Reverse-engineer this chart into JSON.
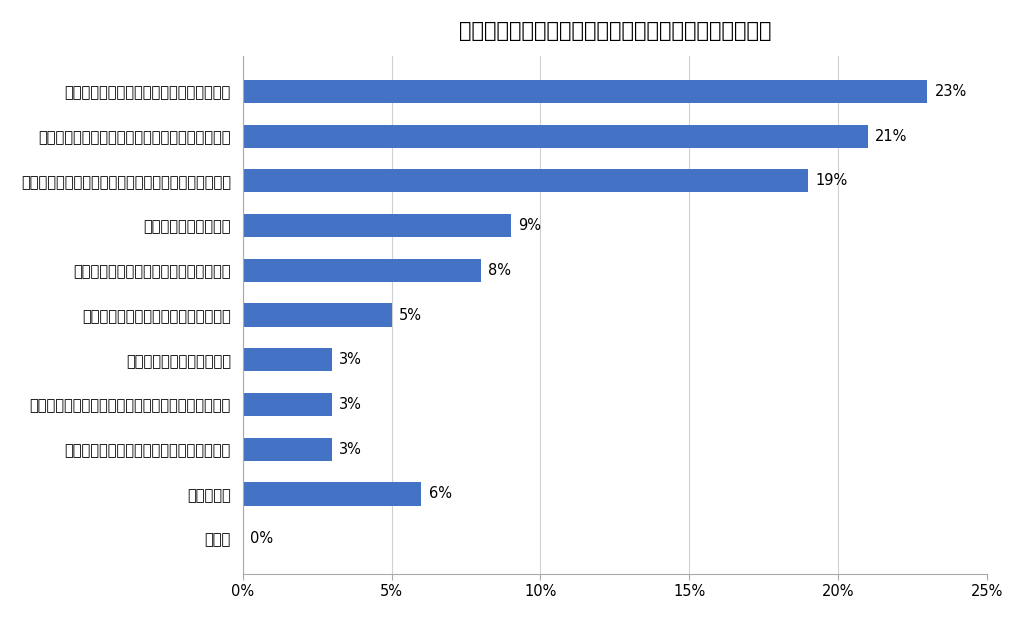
{
  "title": "ガソリン価格が高いと感じる時にする工夫（複数回答）",
  "categories": [
    "給油時に会員割引やカード特典を活用する",
    "少しでも安いガソリンスタンドを探して給油する",
    "急加速・急減速などを避けたエコドライブを心がける",
    "クルマの利用を控える",
    "自家用車ではなくカーシェアを利用する",
    "給油量を調整する（満タンにしない）",
    "クルマに積む荷物を減らす",
    "クルマをメンテナンスすることで燃費を向上させる",
    "燃費の良いクルマへの買い替えを検討する",
    "何もしない",
    "その他"
  ],
  "values": [
    23,
    21,
    19,
    9,
    8,
    5,
    3,
    3,
    3,
    6,
    0
  ],
  "bar_color": "#4472C4",
  "background_color": "#ffffff",
  "xlim": [
    0,
    25
  ],
  "xtick_values": [
    0,
    5,
    10,
    15,
    20,
    25
  ],
  "xtick_labels": [
    "0%",
    "5%",
    "10%",
    "15%",
    "20%",
    "25%"
  ],
  "title_fontsize": 15,
  "label_fontsize": 10.5,
  "value_fontsize": 10.5,
  "bar_height": 0.52
}
